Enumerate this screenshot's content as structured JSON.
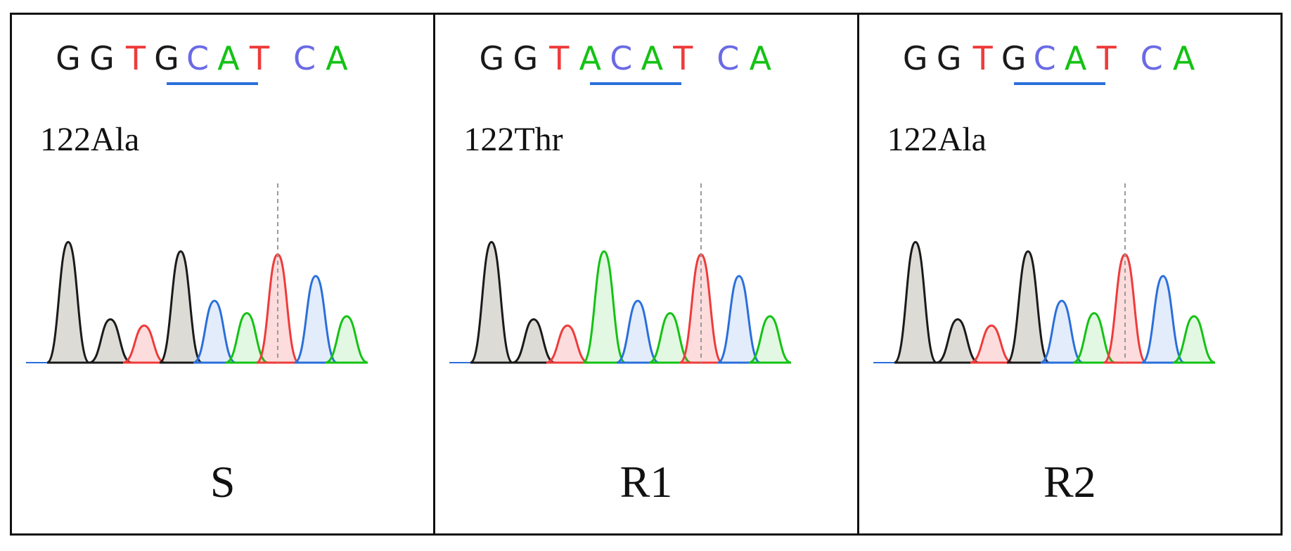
{
  "colors": {
    "G": "#1a1a1a",
    "A": "#14c214",
    "T": "#ee3b3b",
    "C": "#6a6ae6",
    "codon_underline": "#2a6fdb"
  },
  "panels": [
    {
      "label": "S",
      "mutation": "122Ala",
      "bases": [
        "G",
        "G",
        "T",
        "G",
        "C",
        "A",
        "T",
        "C",
        "A"
      ]
    },
    {
      "label": "R1",
      "mutation": "122Thr",
      "bases": [
        "G",
        "G",
        "T",
        "A",
        "C",
        "A",
        "T",
        "C",
        "A"
      ]
    },
    {
      "label": "R2",
      "mutation": "122Ala",
      "bases": [
        "G",
        "G",
        "T",
        "G",
        "C",
        "A",
        "T",
        "C",
        "A"
      ]
    }
  ]
}
